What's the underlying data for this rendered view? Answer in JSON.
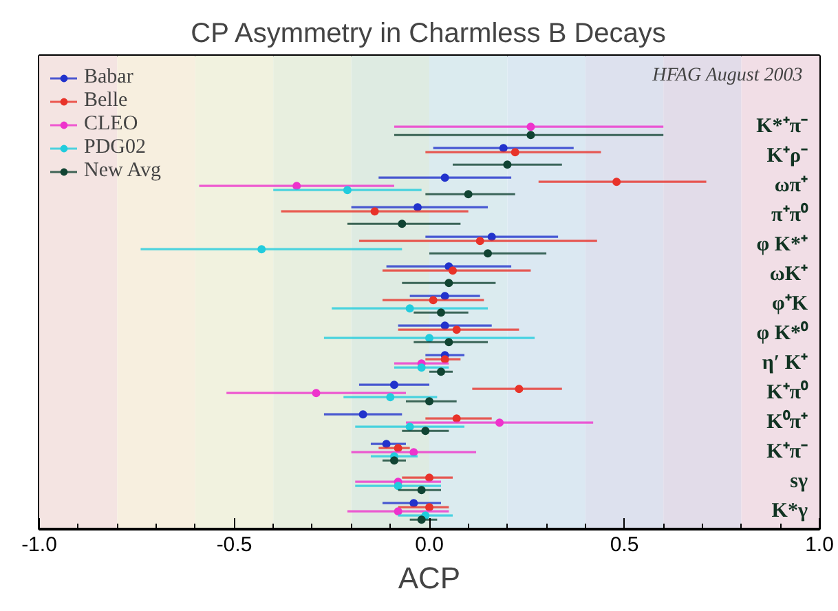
{
  "chart_data": {
    "type": "scatter",
    "orientation": "horizontal",
    "title": "CP Asymmetry in Charmless B Decays",
    "xlabel": "ACP",
    "annotations": [
      "HFAG August 2003"
    ],
    "categories": [
      "K*⁺π⁻",
      "K⁺ρ⁻",
      "ωπ⁺",
      "π⁺π⁰",
      "φ K*⁺",
      "ωK⁺",
      "φ⁺K",
      "φ K*⁰",
      "η′ K⁺",
      "K⁺π⁰",
      "K⁰π⁺",
      "K⁺π⁻",
      "sγ",
      "K*γ"
    ],
    "series": [
      {
        "name": "Babar",
        "color": "#2233cc",
        "values": [
          null,
          0.19,
          0.04,
          -0.03,
          0.16,
          0.05,
          0.04,
          0.04,
          0.04,
          -0.09,
          -0.17,
          -0.11,
          null,
          -0.04
        ],
        "errors": [
          null,
          [
            0.01,
            0.37
          ],
          [
            -0.13,
            0.21
          ],
          [
            -0.2,
            0.15
          ],
          [
            -0.01,
            0.33
          ],
          [
            -0.11,
            0.21
          ],
          [
            -0.05,
            0.13
          ],
          [
            -0.08,
            0.16
          ],
          [
            -0.01,
            0.09
          ],
          [
            -0.18,
            0.0
          ],
          [
            -0.27,
            -0.07
          ],
          [
            -0.15,
            -0.06
          ],
          null,
          [
            -0.12,
            0.03
          ]
        ]
      },
      {
        "name": "Belle",
        "color": "#e8332a",
        "values": [
          null,
          0.22,
          0.48,
          -0.14,
          0.13,
          0.06,
          0.01,
          0.07,
          0.04,
          0.23,
          0.07,
          -0.08,
          0.0,
          0.0
        ],
        "errors": [
          null,
          [
            -0.01,
            0.44
          ],
          [
            0.28,
            0.71
          ],
          [
            -0.38,
            0.1
          ],
          [
            -0.18,
            0.43
          ],
          [
            -0.12,
            0.26
          ],
          [
            -0.12,
            0.14
          ],
          [
            -0.08,
            0.23
          ],
          [
            -0.01,
            0.08
          ],
          [
            0.11,
            0.34
          ],
          [
            -0.01,
            0.16
          ],
          [
            -0.13,
            -0.05
          ],
          [
            -0.07,
            0.06
          ],
          [
            -0.08,
            0.05
          ]
        ]
      },
      {
        "name": "CLEO",
        "color": "#ee33cc",
        "values": [
          0.26,
          null,
          -0.34,
          null,
          null,
          null,
          null,
          null,
          -0.02,
          -0.29,
          0.18,
          -0.04,
          -0.08,
          -0.08
        ],
        "errors": [
          [
            -0.09,
            0.6
          ],
          null,
          [
            -0.59,
            -0.09
          ],
          null,
          null,
          null,
          null,
          null,
          [
            -0.09,
            0.05
          ],
          [
            -0.52,
            -0.06
          ],
          [
            -0.06,
            0.42
          ],
          [
            -0.2,
            0.12
          ],
          [
            -0.19,
            0.03
          ],
          [
            -0.21,
            0.05
          ]
        ]
      },
      {
        "name": "PDG02",
        "color": "#22ccdd",
        "values": [
          null,
          null,
          -0.21,
          null,
          -0.43,
          null,
          -0.05,
          0.0,
          -0.02,
          -0.1,
          -0.05,
          -0.09,
          -0.08,
          -0.01
        ],
        "errors": [
          null,
          null,
          [
            -0.4,
            -0.02
          ],
          null,
          [
            -0.74,
            -0.07
          ],
          null,
          [
            -0.25,
            0.15
          ],
          [
            -0.27,
            0.27
          ],
          [
            -0.09,
            0.05
          ],
          [
            -0.22,
            0.02
          ],
          [
            -0.19,
            0.09
          ],
          [
            -0.15,
            -0.03
          ],
          [
            -0.19,
            0.03
          ],
          [
            -0.08,
            0.06
          ]
        ]
      },
      {
        "name": "New Avg",
        "color": "#114433",
        "values": [
          0.26,
          0.2,
          0.1,
          -0.07,
          0.15,
          0.05,
          0.03,
          0.05,
          0.03,
          0.0,
          -0.01,
          -0.09,
          -0.02,
          -0.02
        ],
        "errors": [
          [
            -0.09,
            0.6
          ],
          [
            0.06,
            0.34
          ],
          [
            -0.01,
            0.22
          ],
          [
            -0.21,
            0.08
          ],
          [
            0.0,
            0.3
          ],
          [
            -0.07,
            0.17
          ],
          [
            -0.04,
            0.1
          ],
          [
            -0.04,
            0.15
          ],
          [
            0.0,
            0.06
          ],
          [
            -0.06,
            0.07
          ],
          [
            -0.07,
            0.05
          ],
          [
            -0.12,
            -0.06
          ],
          [
            -0.08,
            0.03
          ],
          [
            -0.05,
            0.02
          ]
        ]
      }
    ],
    "xlim": [
      -1.0,
      1.0
    ],
    "xticks": [
      {
        "value": -1.0,
        "label": "-1.0"
      },
      {
        "value": -0.9,
        "label": null
      },
      {
        "value": -0.8,
        "label": null
      },
      {
        "value": -0.7,
        "label": null
      },
      {
        "value": -0.6,
        "label": null
      },
      {
        "value": -0.5,
        "label": "-0.5"
      },
      {
        "value": -0.4,
        "label": null
      },
      {
        "value": -0.3,
        "label": null
      },
      {
        "value": -0.2,
        "label": null
      },
      {
        "value": -0.1,
        "label": null
      },
      {
        "value": 0.0,
        "label": "0.0"
      },
      {
        "value": 0.1,
        "label": null
      },
      {
        "value": 0.2,
        "label": null
      },
      {
        "value": 0.3,
        "label": null
      },
      {
        "value": 0.4,
        "label": null
      },
      {
        "value": 0.5,
        "label": "0.5"
      },
      {
        "value": 0.6,
        "label": null
      },
      {
        "value": 0.7,
        "label": null
      },
      {
        "value": 0.8,
        "label": null
      },
      {
        "value": 0.9,
        "label": null
      },
      {
        "value": 1.0,
        "label": "1.0"
      }
    ],
    "bands": [
      {
        "axis": "x",
        "from": -1.0,
        "to": -0.8,
        "color": "#f4e4e2"
      },
      {
        "axis": "x",
        "from": -0.8,
        "to": -0.6,
        "color": "#f7efdf"
      },
      {
        "axis": "x",
        "from": -0.6,
        "to": -0.4,
        "color": "#f1f2df"
      },
      {
        "axis": "x",
        "from": -0.4,
        "to": -0.2,
        "color": "#e8efdf"
      },
      {
        "axis": "x",
        "from": -0.2,
        "to": 0.0,
        "color": "#deebe2"
      },
      {
        "axis": "x",
        "from": 0.0,
        "to": 0.2,
        "color": "#dbebef"
      },
      {
        "axis": "x",
        "from": 0.2,
        "to": 0.4,
        "color": "#dbe8f2"
      },
      {
        "axis": "x",
        "from": 0.4,
        "to": 0.6,
        "color": "#dde1ee"
      },
      {
        "axis": "x",
        "from": 0.6,
        "to": 0.8,
        "color": "#e2dce9"
      },
      {
        "axis": "x",
        "from": 0.8,
        "to": 1.0,
        "color": "#f1dee6"
      }
    ],
    "grid": false,
    "legend": "top left",
    "marker": "circle",
    "tick_labels": "x"
  }
}
